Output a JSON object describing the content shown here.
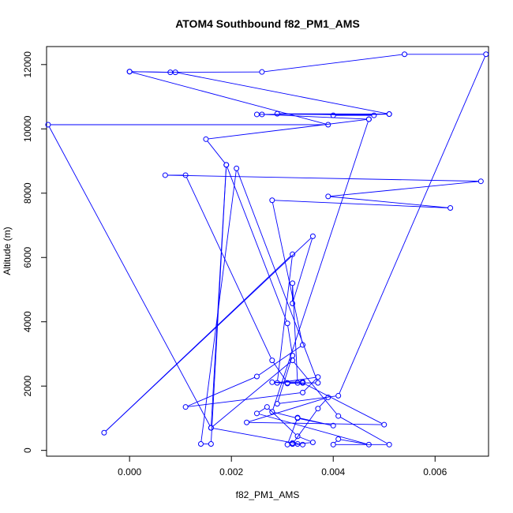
{
  "chart_data": {
    "type": "line",
    "title": "ATOM4 Southbound f82_PM1_AMS",
    "xlabel": "f82_PM1_AMS",
    "ylabel": "Altitude (m)",
    "xlim": [
      -0.00163,
      0.00705
    ],
    "ylim": [
      -180,
      12560
    ],
    "x_ticks": [
      0.0,
      0.002,
      0.004,
      0.006
    ],
    "x_tick_labels": [
      "0.000",
      "0.002",
      "0.004",
      "0.006"
    ],
    "y_ticks": [
      0,
      2000,
      4000,
      6000,
      8000,
      10000,
      12000
    ],
    "y_tick_labels": [
      "0",
      "2000",
      "4000",
      "6000",
      "8000",
      "10000",
      "12000"
    ],
    "grid": false,
    "legend": "none",
    "line_style": "lines with open circle markers",
    "series": [
      {
        "color": "#0000ff",
        "points": [
          [
            0.0,
            11780
          ],
          [
            0.0008,
            11760
          ],
          [
            0.0026,
            11770
          ],
          [
            0.0054,
            12320
          ],
          [
            0.007,
            12320
          ],
          [
            0.0041,
            1700
          ],
          [
            0.0029,
            1450
          ],
          [
            0.0032,
            2950
          ],
          [
            0.0031,
            3950
          ],
          [
            0.0019,
            8880
          ],
          [
            0.0016,
            200
          ],
          [
            0.0014,
            200
          ],
          [
            0.0021,
            8770
          ],
          [
            0.0037,
            2100
          ],
          [
            0.0033,
            2100
          ],
          [
            0.0032,
            5200
          ],
          [
            0.0032,
            4570
          ],
          [
            0.0036,
            6660
          ],
          [
            -0.0005,
            550
          ],
          [
            0.0032,
            6100
          ],
          [
            0.0029,
            2100
          ],
          [
            0.0037,
            2280
          ],
          [
            0.0034,
            1800
          ],
          [
            0.0011,
            1350
          ],
          [
            0.0025,
            2300
          ],
          [
            0.0034,
            3280
          ],
          [
            0.0028,
            7780
          ],
          [
            0.0063,
            7540
          ],
          [
            0.0039,
            7900
          ],
          [
            0.0069,
            8370
          ],
          [
            0.0007,
            8560
          ],
          [
            0.0011,
            8560
          ],
          [
            0.0028,
            2800
          ],
          [
            0.0031,
            2100
          ],
          [
            0.0034,
            2100
          ],
          [
            0.0031,
            2080
          ],
          [
            0.0028,
            2120
          ],
          [
            0.0034,
            2130
          ],
          [
            0.0034,
            2100
          ],
          [
            0.005,
            800
          ],
          [
            0.0023,
            870
          ],
          [
            0.0039,
            1650
          ],
          [
            0.0037,
            1300
          ],
          [
            0.0032,
            200
          ],
          [
            0.0032,
            230
          ],
          [
            0.0033,
            200
          ],
          [
            0.0036,
            250
          ],
          [
            0.0033,
            440
          ],
          [
            0.0027,
            1350
          ],
          [
            0.0025,
            1150
          ],
          [
            0.0047,
            180
          ],
          [
            0.0041,
            350
          ],
          [
            0.004,
            180
          ],
          [
            0.0051,
            180
          ],
          [
            0.0041,
            1070
          ],
          [
            0.0032,
            2800
          ],
          [
            0.0016,
            700
          ],
          [
            0.0034,
            180
          ],
          [
            0.0032,
            200
          ],
          [
            0.0031,
            180
          ],
          [
            0.0033,
            1020
          ],
          [
            0.004,
            770
          ],
          [
            0.0033,
            1000
          ],
          [
            0.0028,
            1200
          ],
          [
            0.0047,
            10300
          ],
          [
            0.0026,
            10450
          ],
          [
            0.0025,
            10450
          ],
          [
            0.0051,
            10460
          ],
          [
            0.0029,
            10470
          ],
          [
            0.0048,
            10420
          ],
          [
            0.004,
            10420
          ],
          [
            0.0051,
            10460
          ],
          [
            0.0009,
            11760
          ],
          [
            0.0,
            11780
          ],
          [
            0.0039,
            10130
          ],
          [
            -0.0016,
            10130
          ],
          [
            0.0016,
            700
          ],
          [
            0.0019,
            8880
          ],
          [
            0.0015,
            9680
          ],
          [
            0.0047,
            10300
          ]
        ]
      }
    ]
  }
}
